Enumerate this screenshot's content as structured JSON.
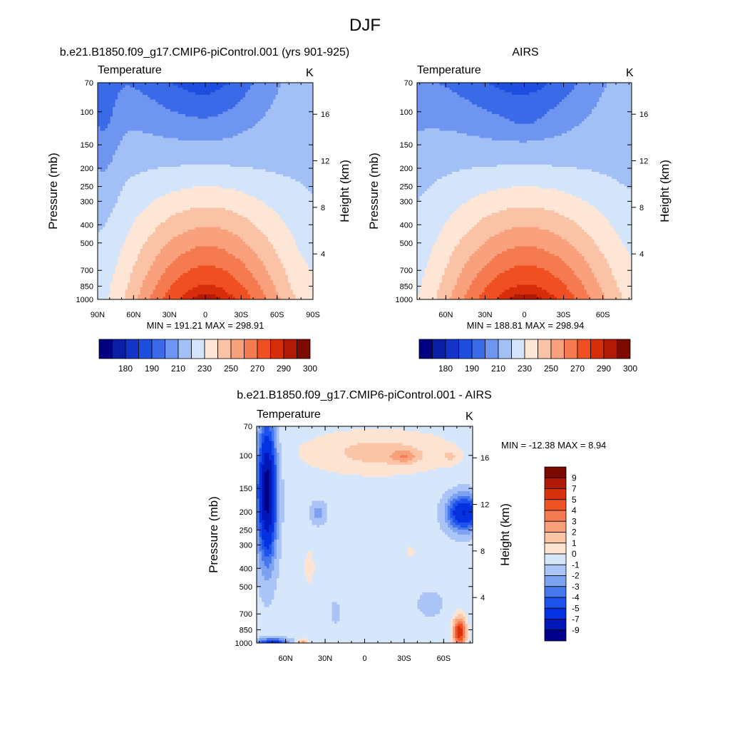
{
  "figure": {
    "title": "DJF"
  },
  "colors": {
    "abs_levels": [
      "#000080",
      "#0a1fa6",
      "#1234c8",
      "#1e4ee0",
      "#3a6ae8",
      "#6e95f0",
      "#a3c0f6",
      "#d4e4fb",
      "#fde6d6",
      "#fbc3a6",
      "#f8a17c",
      "#f57a4f",
      "#f04f22",
      "#d82d0a",
      "#b21a05",
      "#7c0a00"
    ],
    "diff_levels": [
      "#00008a",
      "#0018b8",
      "#0432e0",
      "#1e52ec",
      "#4777ec",
      "#7ea2f2",
      "#aac4f7",
      "#d6e6fb",
      "#fde4d2",
      "#fac4a6",
      "#f8a07a",
      "#f57c50",
      "#f05424",
      "#d8320c",
      "#b01a04",
      "#780800"
    ]
  },
  "chart_data": [
    {
      "type": "heatmap",
      "title": "b.e21.B1850.f09_g17.CMIP6-piControl.001 (yrs 901-925)",
      "left_label": "Temperature",
      "right_label": "K",
      "ylabel": "Pressure (mb)",
      "y2label": "Height (km)",
      "x_ticks": [
        "90N",
        "60N",
        "30N",
        "0",
        "30S",
        "60S",
        "90S"
      ],
      "y_ticks": [
        "70",
        "100",
        "150",
        "200",
        "250",
        "300",
        "400",
        "500",
        "700",
        "850",
        "1000"
      ],
      "y2_ticks": [
        "4",
        "8",
        "12",
        "16"
      ],
      "stats": "MIN = 191.21  MAX = 298.91",
      "colorbar": {
        "labels": [
          "180",
          "190",
          "210",
          "230",
          "250",
          "270",
          "290",
          "300"
        ],
        "orientation": "horizontal"
      },
      "field": {
        "kind": "temperature",
        "variant": "model"
      }
    },
    {
      "type": "heatmap",
      "title": "AIRS",
      "left_label": "Temperature",
      "right_label": "K",
      "ylabel": "Pressure (mb)",
      "y2label": "Height (km)",
      "x_ticks": [
        "60N",
        "30N",
        "0",
        "30S",
        "60S"
      ],
      "y_ticks": [
        "70",
        "100",
        "150",
        "200",
        "250",
        "300",
        "400",
        "500",
        "700",
        "850",
        "1000"
      ],
      "y2_ticks": [
        "4",
        "8",
        "12",
        "16"
      ],
      "stats": "MIN = 188.81  MAX = 298.94",
      "colorbar": {
        "labels": [
          "180",
          "190",
          "210",
          "230",
          "250",
          "270",
          "290",
          "300"
        ],
        "orientation": "horizontal"
      },
      "field": {
        "kind": "temperature",
        "variant": "obs"
      }
    },
    {
      "type": "heatmap",
      "title": "b.e21.B1850.f09_g17.CMIP6-piControl.001 - AIRS",
      "left_label": "Temperature",
      "right_label": "K",
      "ylabel": "Pressure (mb)",
      "y2label": "Height (km)",
      "x_ticks": [
        "60N",
        "30N",
        "0",
        "30S",
        "60S"
      ],
      "y_ticks": [
        "70",
        "100",
        "150",
        "200",
        "250",
        "300",
        "400",
        "500",
        "700",
        "850",
        "1000"
      ],
      "y2_ticks": [
        "4",
        "8",
        "12",
        "16"
      ],
      "stats": "MIN = -12.38  MAX =   8.94",
      "colorbar": {
        "labels": [
          "9",
          "7",
          "5",
          "4",
          "3",
          "2",
          "1",
          "0",
          "-1",
          "-2",
          "-3",
          "-4",
          "-5",
          "-7",
          "-9"
        ],
        "orientation": "vertical"
      },
      "field": {
        "kind": "difference"
      }
    }
  ]
}
